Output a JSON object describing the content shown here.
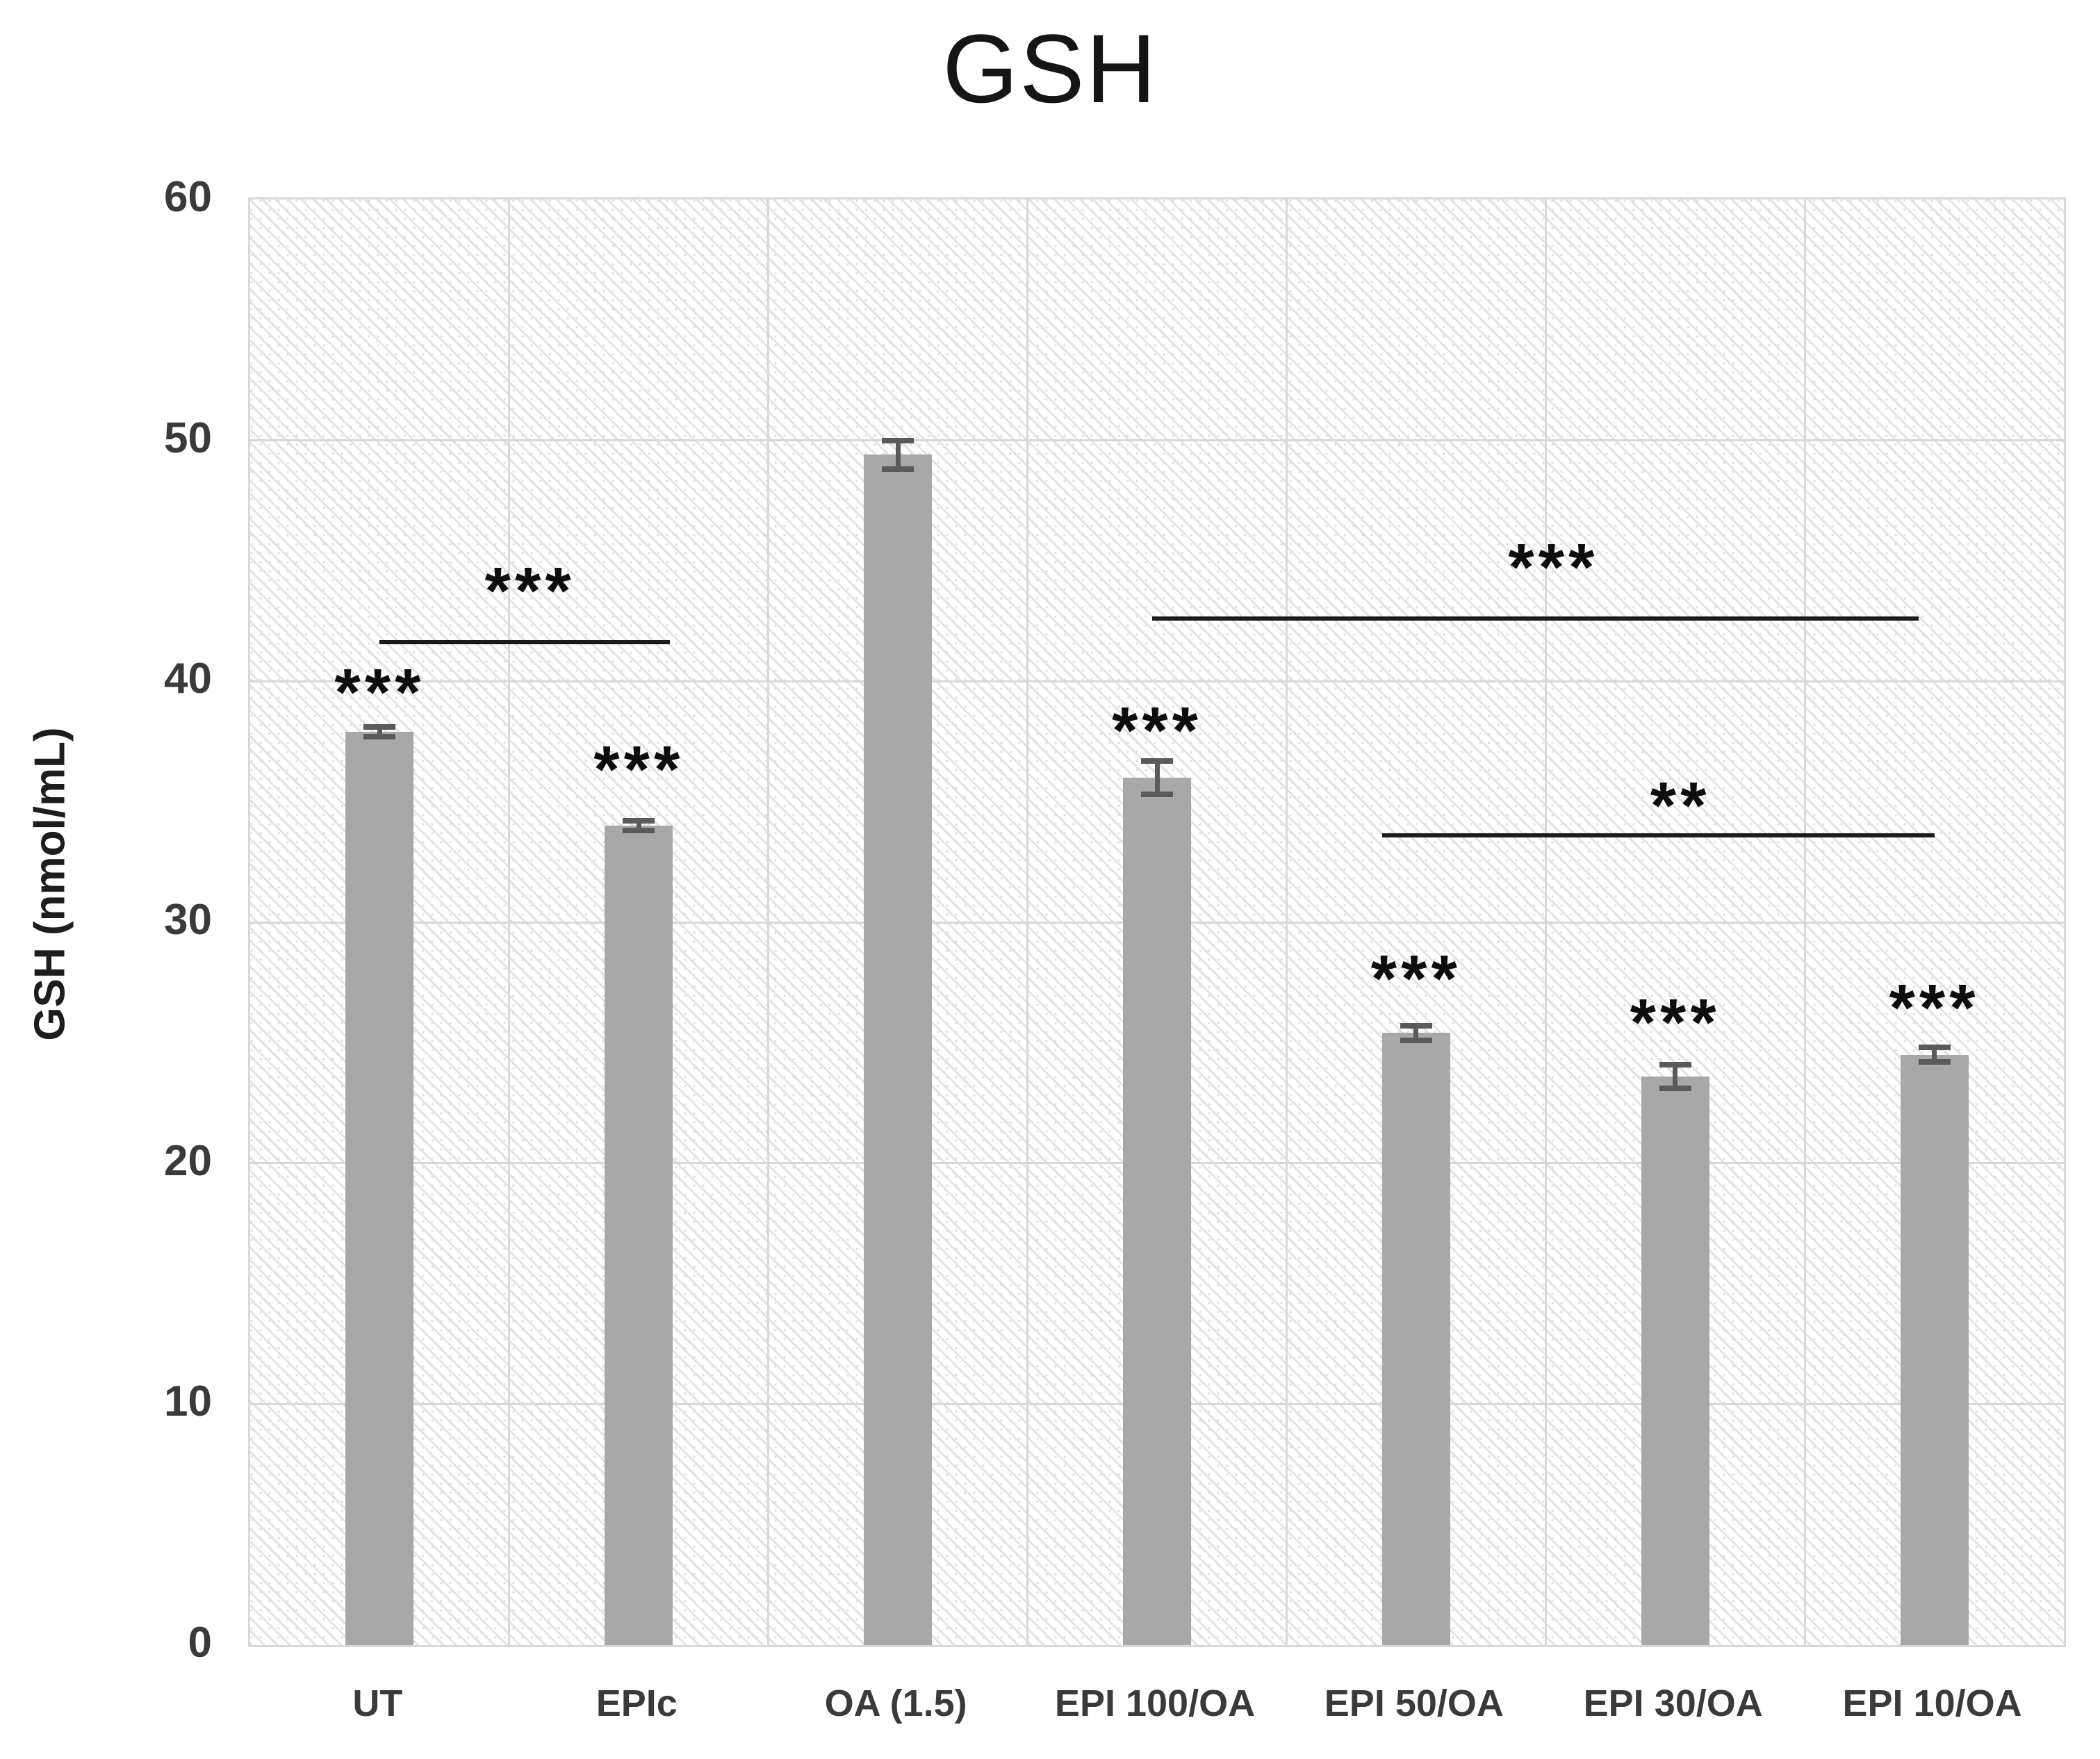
{
  "title": "GSH",
  "y_axis": {
    "label": "GSH (nmol/mL)"
  },
  "chart_data": {
    "type": "bar",
    "title": "GSH",
    "xlabel": "",
    "ylabel": "GSH (nmol/mL)",
    "ylim": [
      0,
      60
    ],
    "ytick_step": 10,
    "ytick_labels": [
      "0",
      "10",
      "20",
      "30",
      "40",
      "50",
      "60"
    ],
    "grid": true,
    "legend": "none",
    "categories": [
      "UT",
      "EPIc",
      "OA (1.5)",
      "EPI 100/OA",
      "EPI 50/OA",
      "EPI 30/OA",
      "EPI 10/OA"
    ],
    "values": [
      37.9,
      34.0,
      49.4,
      36.0,
      25.4,
      23.6,
      24.5
    ],
    "errors": [
      0.2,
      0.2,
      0.6,
      0.7,
      0.3,
      0.5,
      0.3
    ],
    "bar_color": "#a8a8a8",
    "error_bar_color": "#5a5a5a",
    "gridline_color": "#d8d8d8",
    "significance_above_bars": [
      {
        "category_index": 0,
        "text": "***",
        "y": 40.1
      },
      {
        "category_index": 1,
        "text": "***",
        "y": 36.9
      },
      {
        "category_index": 3,
        "text": "***",
        "y": 38.5
      },
      {
        "category_index": 4,
        "text": "***",
        "y": 28.2
      },
      {
        "category_index": 5,
        "text": "***",
        "y": 26.4
      },
      {
        "category_index": 6,
        "text": "***",
        "y": 27.0
      }
    ],
    "comparison_lines": [
      {
        "x1": 0.5,
        "x2": 1.62,
        "y": 41.7,
        "label": "***",
        "label_x": 1.08,
        "label_y": 44.3
      },
      {
        "x1": 3.48,
        "x2": 6.44,
        "y": 42.7,
        "label": "***",
        "label_x": 5.03,
        "label_y": 45.3
      },
      {
        "x1": 4.37,
        "x2": 6.5,
        "y": 33.7,
        "label": "**",
        "label_x": 5.52,
        "label_y": 35.4
      }
    ]
  }
}
